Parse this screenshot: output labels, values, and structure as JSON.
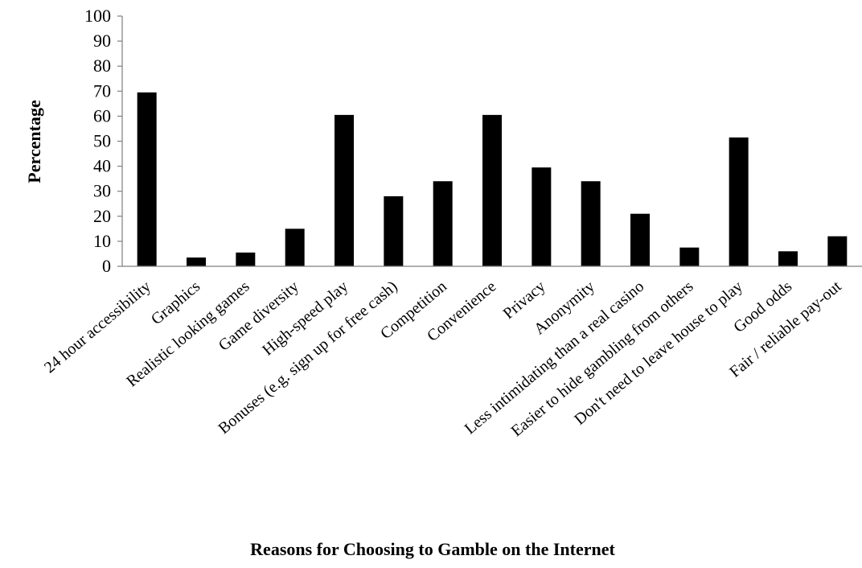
{
  "chart_data": {
    "type": "bar",
    "title": "",
    "xlabel": "Reasons for Choosing to Gamble on the Internet",
    "ylabel": "Percentage",
    "ylim": [
      0,
      100
    ],
    "yticks": [
      "0",
      "10",
      "20",
      "30",
      "40",
      "50",
      "60",
      "70",
      "80",
      "90",
      "100"
    ],
    "grid": false,
    "legend": "none",
    "bar_color": "#000000",
    "categories": [
      "24 hour accessibility",
      "Graphics",
      "Realistic looking games",
      "Game diversity",
      "High-speed play",
      "Bonuses (e.g. sign up for free cash)",
      "Competition",
      "Convenience",
      "Privacy",
      "Anonymity",
      "Less intimidating than a real casino",
      "Easier to hide gambling from others",
      "Don't need to leave house to play",
      "Good odds",
      "Fair / reliable pay-out"
    ],
    "values": [
      69.5,
      3.5,
      5.5,
      15,
      60.5,
      28,
      34,
      60.5,
      39.5,
      34,
      21,
      7.5,
      51.5,
      6,
      12
    ]
  }
}
